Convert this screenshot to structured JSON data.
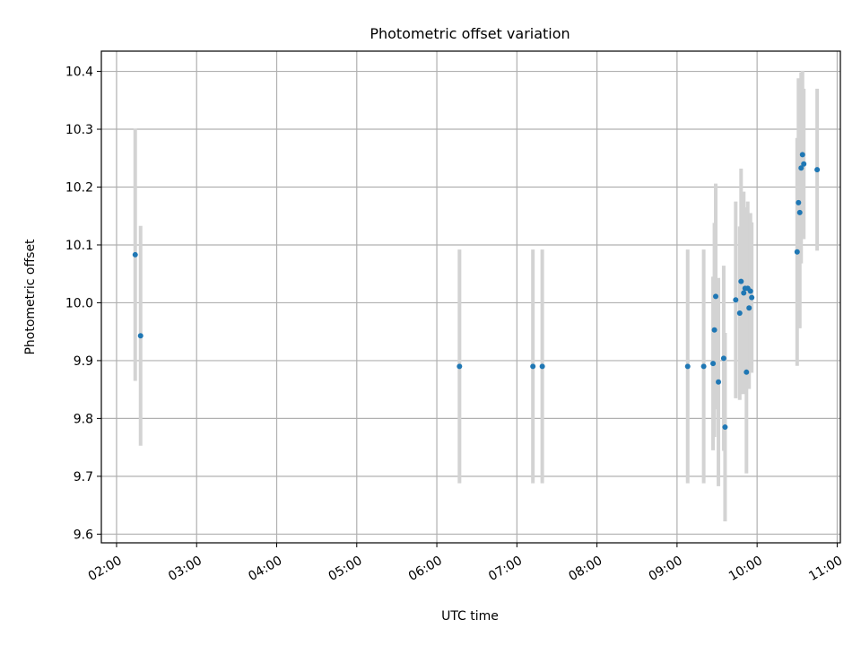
{
  "chart_data": {
    "type": "scatter",
    "title": "Photometric offset variation",
    "xlabel": "UTC time",
    "ylabel": "Photometric offset",
    "x_unit": "UTC hours",
    "xlim": [
      1.81,
      11.04
    ],
    "ylim": [
      9.585,
      10.435
    ],
    "x_ticks": [
      {
        "value": 2,
        "label": "02:00"
      },
      {
        "value": 3,
        "label": "03:00"
      },
      {
        "value": 4,
        "label": "04:00"
      },
      {
        "value": 5,
        "label": "05:00"
      },
      {
        "value": 6,
        "label": "06:00"
      },
      {
        "value": 7,
        "label": "07:00"
      },
      {
        "value": 8,
        "label": "08:00"
      },
      {
        "value": 9,
        "label": "09:00"
      },
      {
        "value": 10,
        "label": "10:00"
      },
      {
        "value": 11,
        "label": "11:00"
      }
    ],
    "y_ticks": [
      {
        "value": 9.6,
        "label": "9.6"
      },
      {
        "value": 9.7,
        "label": "9.7"
      },
      {
        "value": 9.8,
        "label": "9.8"
      },
      {
        "value": 9.9,
        "label": "9.9"
      },
      {
        "value": 10.0,
        "label": "10.0"
      },
      {
        "value": 10.1,
        "label": "10.1"
      },
      {
        "value": 10.2,
        "label": "10.2"
      },
      {
        "value": 10.3,
        "label": "10.3"
      },
      {
        "value": 10.4,
        "label": "10.4"
      }
    ],
    "grid": true,
    "colors": {
      "point": "#1f77b4",
      "errorbar": "#d3d3d3",
      "grid": "#b0b0b0"
    },
    "points": [
      {
        "time": "02:14",
        "x": 2.233,
        "y": 10.083,
        "yerr": 0.218
      },
      {
        "time": "02:18",
        "x": 2.3,
        "y": 9.943,
        "yerr": 0.19
      },
      {
        "time": "06:17",
        "x": 6.283,
        "y": 9.89,
        "yerr": 0.202
      },
      {
        "time": "07:12",
        "x": 7.2,
        "y": 9.89,
        "yerr": 0.202
      },
      {
        "time": "07:19",
        "x": 7.317,
        "y": 9.89,
        "yerr": 0.202
      },
      {
        "time": "09:08",
        "x": 9.133,
        "y": 9.89,
        "yerr": 0.202
      },
      {
        "time": "09:20",
        "x": 9.333,
        "y": 9.89,
        "yerr": 0.202
      },
      {
        "time": "09:27",
        "x": 9.45,
        "y": 9.895,
        "yerr": 0.15
      },
      {
        "time": "09:28",
        "x": 9.467,
        "y": 9.953,
        "yerr": 0.185
      },
      {
        "time": "09:29",
        "x": 9.483,
        "y": 10.011,
        "yerr": 0.195
      },
      {
        "time": "09:31",
        "x": 9.517,
        "y": 9.863,
        "yerr": 0.18
      },
      {
        "time": "09:35",
        "x": 9.583,
        "y": 9.904,
        "yerr": 0.16
      },
      {
        "time": "09:36",
        "x": 9.6,
        "y": 9.785,
        "yerr": 0.163
      },
      {
        "time": "09:44",
        "x": 9.733,
        "y": 10.005,
        "yerr": 0.17
      },
      {
        "time": "09:47",
        "x": 9.783,
        "y": 9.982,
        "yerr": 0.15
      },
      {
        "time": "09:48",
        "x": 9.8,
        "y": 10.037,
        "yerr": 0.195
      },
      {
        "time": "09:50",
        "x": 9.833,
        "y": 10.017,
        "yerr": 0.175
      },
      {
        "time": "09:51",
        "x": 9.85,
        "y": 10.025,
        "yerr": 0.14
      },
      {
        "time": "09:52",
        "x": 9.867,
        "y": 9.88,
        "yerr": 0.175
      },
      {
        "time": "09:53",
        "x": 9.883,
        "y": 10.025,
        "yerr": 0.15
      },
      {
        "time": "09:54",
        "x": 9.9,
        "y": 9.991,
        "yerr": 0.14
      },
      {
        "time": "09:55",
        "x": 9.917,
        "y": 10.02,
        "yerr": 0.135
      },
      {
        "time": "09:56",
        "x": 9.933,
        "y": 10.009,
        "yerr": 0.13
      },
      {
        "time": "10:30",
        "x": 10.5,
        "y": 10.088,
        "yerr": 0.197
      },
      {
        "time": "10:31",
        "x": 10.517,
        "y": 10.173,
        "yerr": 0.215
      },
      {
        "time": "10:32",
        "x": 10.533,
        "y": 10.156,
        "yerr": 0.2
      },
      {
        "time": "10:33",
        "x": 10.55,
        "y": 10.233,
        "yerr": 0.165
      },
      {
        "time": "10:34",
        "x": 10.567,
        "y": 10.256,
        "yerr": 0.145
      },
      {
        "time": "10:35",
        "x": 10.583,
        "y": 10.24,
        "yerr": 0.13
      },
      {
        "time": "10:45",
        "x": 10.75,
        "y": 10.23,
        "yerr": 0.14
      }
    ]
  }
}
